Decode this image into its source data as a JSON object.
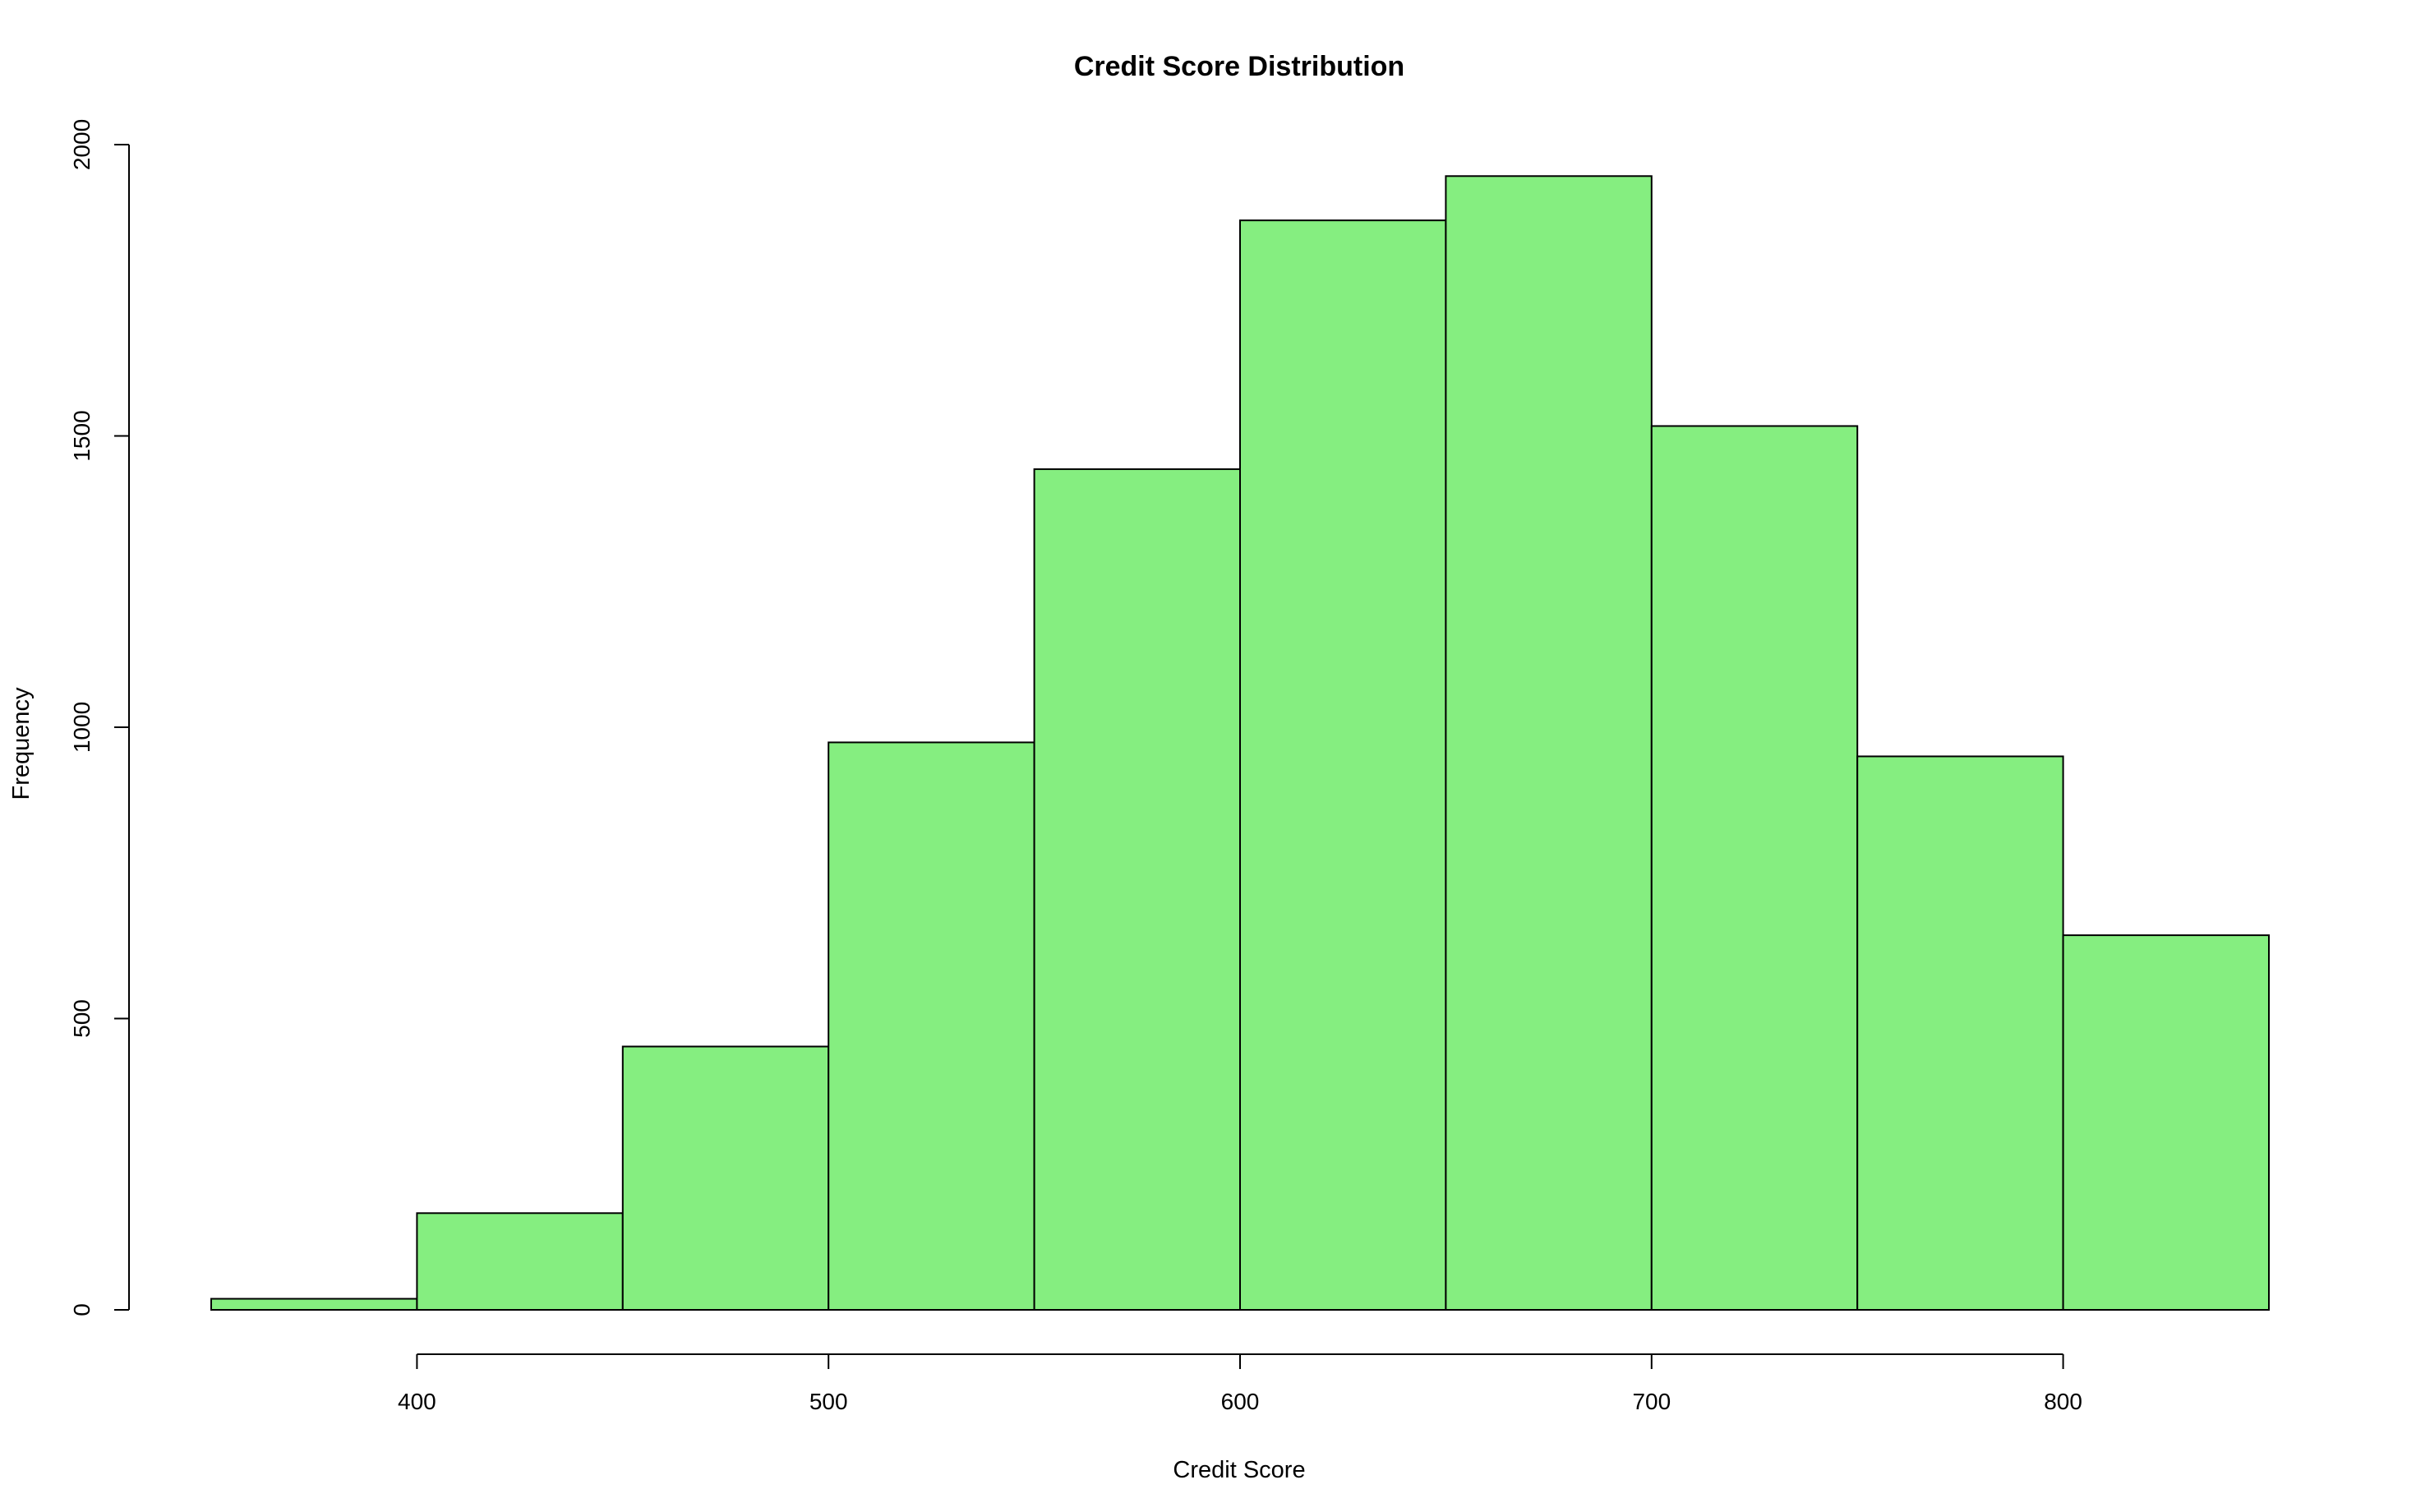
{
  "chart_data": {
    "type": "bar",
    "title": "Credit Score Distribution",
    "xlabel": "Credit Score",
    "ylabel": "Frequency",
    "bin_edges": [
      350,
      400,
      450,
      500,
      550,
      600,
      650,
      700,
      750,
      800,
      850
    ],
    "values": [
      19,
      166,
      452,
      974,
      1443,
      1870,
      1946,
      1517,
      950,
      643
    ],
    "x_ticks": [
      400,
      500,
      600,
      700,
      800
    ],
    "y_ticks": [
      0,
      500,
      1000,
      1500,
      2000
    ],
    "xlim": [
      350,
      850
    ],
    "ylim": [
      0,
      2000
    ],
    "grid": false,
    "bar_color": "#85ee80",
    "edge_color": "#000000"
  }
}
